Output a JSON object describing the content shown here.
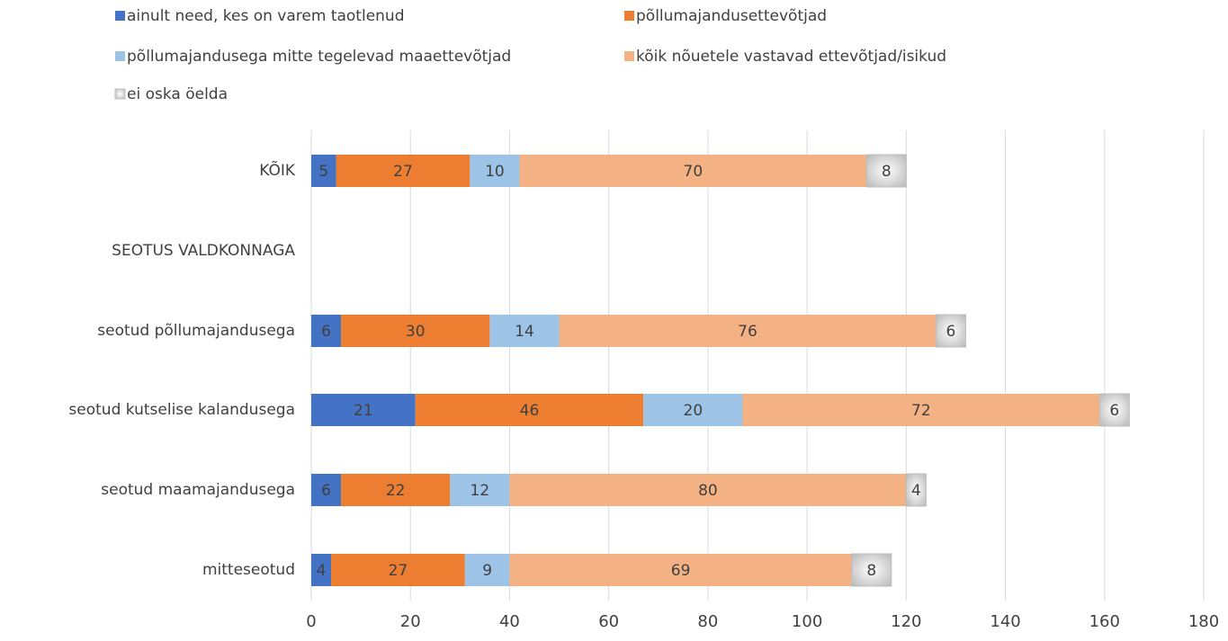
{
  "chart_data": {
    "type": "stacked_barh",
    "categories": [
      "KÕIK",
      "SEOTUS VALDKONNAGA",
      "seotud põllumajandusega",
      "seotud kutselise kalandusega",
      "seotud maamajandusega",
      "mitteseotud"
    ],
    "series": [
      {
        "name": "ainult need, kes on varem taotlenud",
        "color": "#4472c4",
        "values": [
          5,
          null,
          6,
          21,
          6,
          4
        ]
      },
      {
        "name": "põllumajandusettevõtjad",
        "color": "#ed7d31",
        "values": [
          27,
          null,
          30,
          46,
          22,
          27
        ]
      },
      {
        "name": "põllumajandusega mitte tegelevad maaettevõtjad",
        "color": "#9dc3e6",
        "values": [
          10,
          null,
          14,
          20,
          12,
          9
        ]
      },
      {
        "name": "kõik nõuetele vastavad ettevõtjad/isikud",
        "color": "#f4b183",
        "values": [
          70,
          null,
          76,
          72,
          80,
          69
        ]
      },
      {
        "name": "ei oska öelda",
        "color": "#d0d0d0",
        "values": [
          8,
          null,
          6,
          6,
          4,
          8
        ]
      }
    ],
    "xlim": [
      0,
      180
    ],
    "xticks": [
      0,
      20,
      40,
      60,
      80,
      100,
      120,
      140,
      160,
      180
    ],
    "grid": true
  }
}
